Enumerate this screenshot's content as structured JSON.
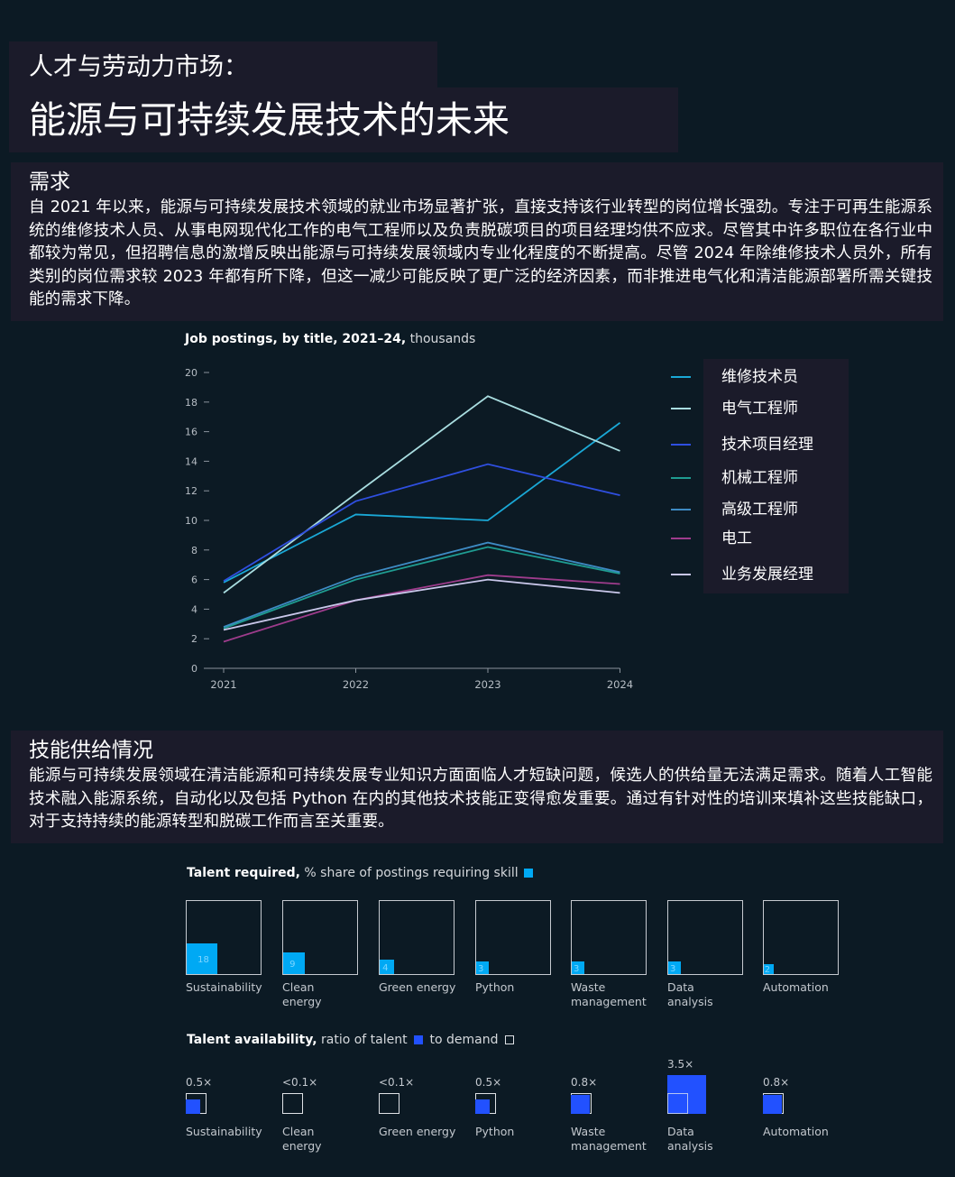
{
  "header": {
    "title_line1": "人才与劳动力市场：",
    "title_line2": "能源与可持续发展技术的未来"
  },
  "demand": {
    "heading": "需求",
    "body": "自 2021 年以来，能源与可持续发展技术领域的就业市场显著扩张，直接支持该行业转型的岗位增长强劲。专注于可再生能源系统的维修技术人员、从事电网现代化工作的电气工程师以及负责脱碳项目的项目经理均供不应求。尽管其中许多职位在各行业中都较为常见，但招聘信息的激增反映出能源与可持续发展领域内专业化程度的不断提高。尽管 2024 年除维修技术人员外，所有类别的岗位需求较 2023 年都有所下降，但这一减少可能反映了更广泛的经济因素，而非推进电气化和清洁能源部署所需关键技能的需求下降。"
  },
  "skills_supply": {
    "heading": "技能供给情况",
    "body": "能源与可持续发展领域在清洁能源和可持续发展专业知识方面面临人才短缺问题，候选人的供给量无法满足需求。随着人工智能技术融入能源系统，自动化以及包括 Python 在内的其他技术技能正变得愈发重要。通过有针对性的培训来填补这些技能缺口，对于支持持续的能源转型和脱碳工作而言至关重要。"
  },
  "chart_data": [
    {
      "type": "line",
      "title_bold": "Job postings, by title, 2021–24,",
      "title_rest": " thousands",
      "x": [
        "2021",
        "2022",
        "2023",
        "2024"
      ],
      "ylim": [
        0,
        20
      ],
      "yticks": [
        0,
        2,
        4,
        6,
        8,
        10,
        12,
        14,
        16,
        18,
        20
      ],
      "series": [
        {
          "name": "维修技术员",
          "color": "#1aa8d6",
          "values": [
            5.8,
            10.4,
            10.0,
            16.6
          ]
        },
        {
          "name": "电气工程师",
          "color": "#a9dde0",
          "values": [
            5.1,
            11.8,
            18.4,
            14.7
          ]
        },
        {
          "name": "技术项目经理",
          "color": "#2f4fe0",
          "values": [
            5.9,
            11.3,
            13.8,
            11.7
          ]
        },
        {
          "name": "机械工程师",
          "color": "#1f9c91",
          "values": [
            2.7,
            6.0,
            8.2,
            6.4
          ]
        },
        {
          "name": "高级工程师",
          "color": "#3e8bc4",
          "values": [
            2.8,
            6.2,
            8.5,
            6.5
          ]
        },
        {
          "name": "电工",
          "color": "#9e3c8c",
          "values": [
            1.8,
            4.6,
            6.3,
            5.7
          ]
        },
        {
          "name": "业务发展经理",
          "color": "#c9c7ea",
          "values": [
            2.6,
            4.6,
            6.0,
            5.1
          ]
        }
      ]
    },
    {
      "type": "bar",
      "title_bold": "Talent required,",
      "title_rest": " % share of postings requiring skill",
      "categories": [
        "Sustainability",
        "Clean\nenergy",
        "Green energy",
        "Python",
        "Waste\nmanagement",
        "Data\nanalysis",
        "Automation"
      ],
      "values": [
        18,
        9,
        4,
        3,
        3,
        3,
        2
      ],
      "value_labels": [
        "18",
        "9",
        "4",
        "3",
        "3",
        "3",
        "2"
      ],
      "color": "#00a9f4"
    },
    {
      "type": "bar",
      "title_bold": "Talent availability,",
      "title_mid": " ratio of talent ",
      "title_end": " to demand ",
      "categories": [
        "Sustainability",
        "Clean\nenergy",
        "Green energy",
        "Python",
        "Waste\nmanagement",
        "Data\nanalysis",
        "Automation"
      ],
      "ratio_labels": [
        "0.5×",
        "<0.1×",
        "<0.1×",
        "0.5×",
        "0.8×",
        "3.5×",
        "0.8×"
      ],
      "ratios": [
        0.5,
        0.05,
        0.05,
        0.5,
        0.8,
        3.5,
        0.8
      ],
      "talent_color": "#2251ff"
    }
  ]
}
